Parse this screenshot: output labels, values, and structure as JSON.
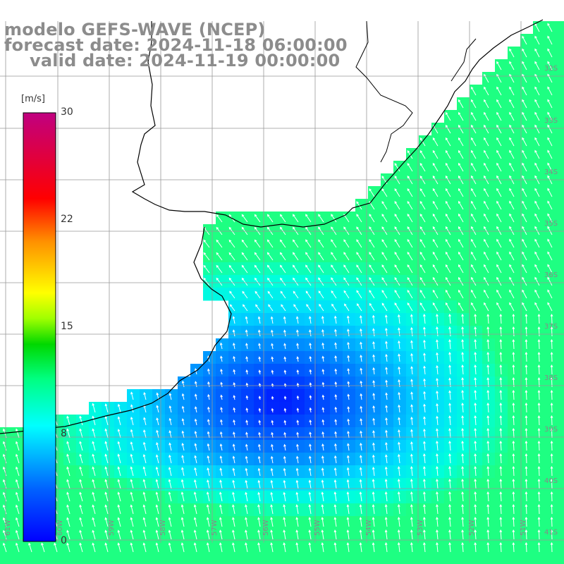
{
  "title": {
    "model": "modelo GEFS-WAVE (NCEP)",
    "forecast": "forecast date: 2024-11-18 06:00:00",
    "valid": "valid date: 2024-11-19 00:00:00"
  },
  "colorbar": {
    "unit": "[m/s]",
    "ticks": [
      "30",
      "22",
      "15",
      "8",
      "0"
    ],
    "min": 0,
    "max": 30,
    "colors": [
      "#0000ff",
      "#00a0ff",
      "#00ffff",
      "#00ff80",
      "#00e000",
      "#ffff00",
      "#ff8000",
      "#ff0000",
      "#c00080"
    ]
  },
  "map": {
    "variable": "wind speed and direction",
    "lon_labels": [
      "61W",
      "60W",
      "59W",
      "58W",
      "57W",
      "56W",
      "55W",
      "54W",
      "53W",
      "52W",
      "51W"
    ],
    "lat_labels": [
      "32S",
      "33S",
      "34S",
      "35S",
      "36S",
      "37S",
      "38S",
      "39S",
      "40S",
      "41S"
    ],
    "lon_range": [
      -61.5,
      -50.5
    ],
    "lat_range": [
      -31.0,
      -41.5
    ],
    "land_color": "#ffffff",
    "coast_color": "#000000",
    "grid_color": "#999999"
  }
}
